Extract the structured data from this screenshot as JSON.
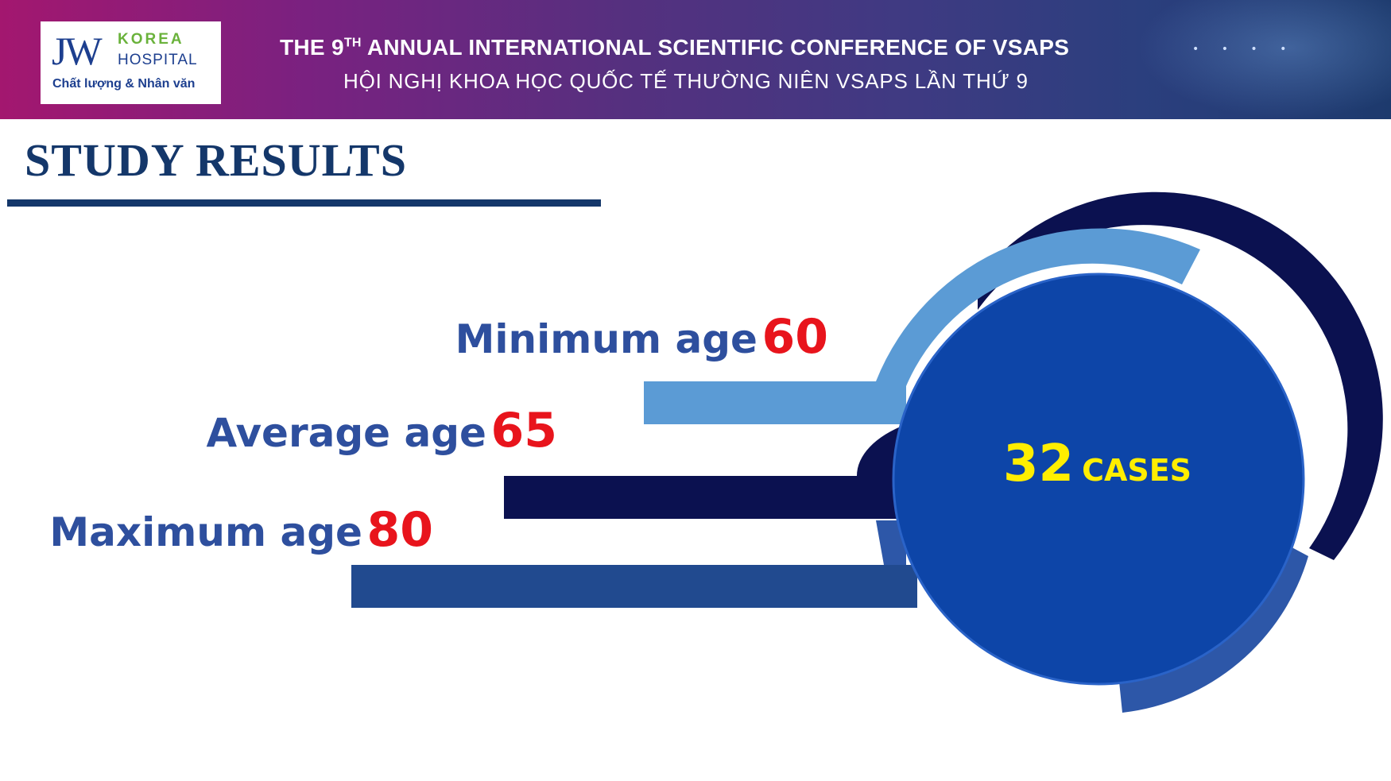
{
  "header": {
    "logo": {
      "mark": "JW",
      "line1": "KOREA",
      "line2": "HOSPITAL",
      "tagline": "Chất lượng & Nhân văn"
    },
    "title_prefix": "THE 9",
    "title_sup": "TH",
    "title_rest": " ANNUAL INTERNATIONAL SCIENTIFIC CONFERENCE OF VSAPS",
    "subtitle": "HỘI NGHỊ KHOA HỌC QUỐC TẾ THƯỜNG NIÊN VSAPS LẦN THỨ 9"
  },
  "slide": {
    "heading": "STUDY RESULTS",
    "stats": [
      {
        "label": "Minimum age",
        "value": "60"
      },
      {
        "label": "Average age",
        "value": "65"
      },
      {
        "label": "Maximum age",
        "value": "80"
      }
    ],
    "cases": {
      "count": "32",
      "label": "CASES"
    }
  },
  "colors": {
    "heading": "#14376a",
    "label": "#2e4f9e",
    "value": "#e8141c",
    "cases_text": "#ffee00",
    "circle": "#0d45a8",
    "dark_navy": "#0b1150",
    "light_blue": "#5b9bd5",
    "mid_blue": "#214a8f"
  }
}
